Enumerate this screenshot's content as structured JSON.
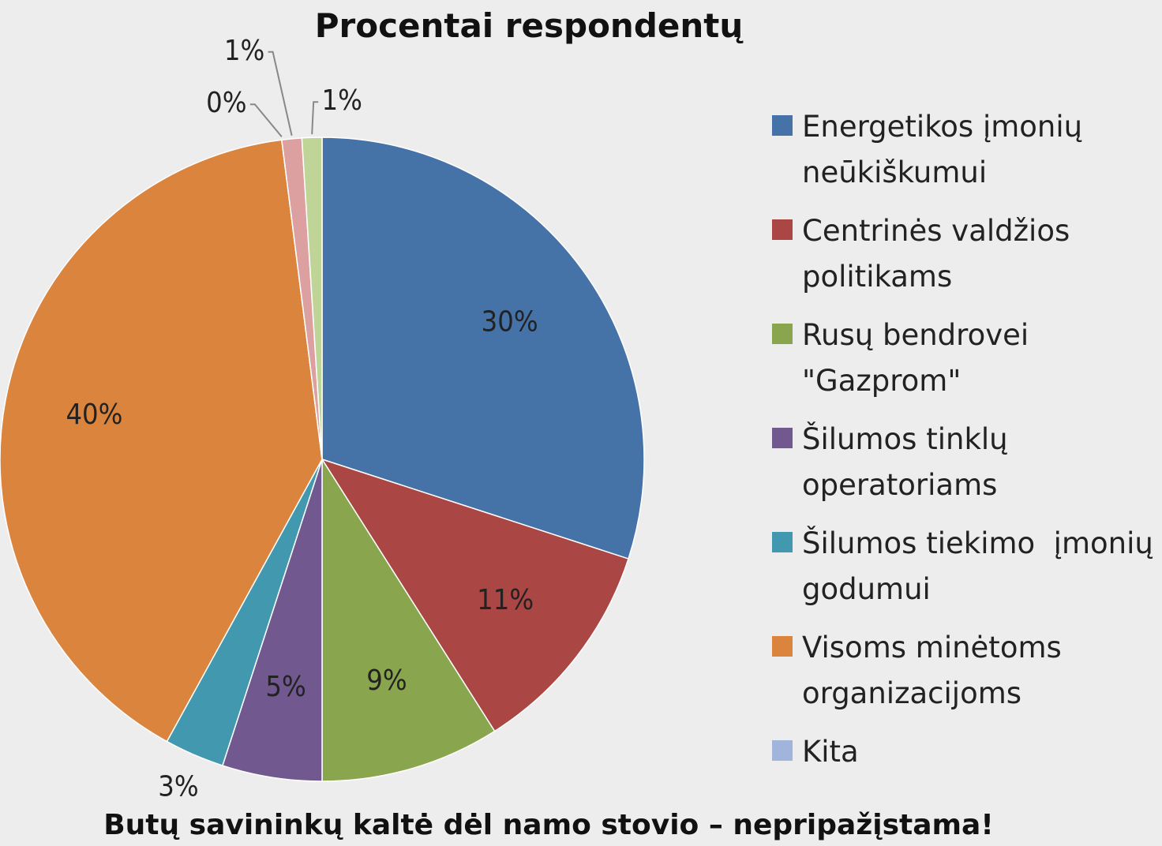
{
  "chart_data": {
    "type": "pie",
    "title": "Procentai respondentų",
    "categories": [
      "Energetikos įmonių neūkiškumui",
      "Centrinės valdžios politikams",
      "Rusų bendrovei \"Gazprom\"",
      "Šilumos tinklų operatoriams",
      "Šilumos tiekimo  įmonių godumui",
      "Visoms minėtoms organizacijoms",
      "Kita",
      null,
      null
    ],
    "values": [
      30,
      11,
      9,
      5,
      3,
      40,
      0,
      1,
      1
    ],
    "value_labels": [
      "30%",
      "11%",
      "9%",
      "5%",
      "3%",
      "40%",
      "0%",
      "1%",
      "1%"
    ],
    "colors": [
      "#4572A7",
      "#AA4643",
      "#89A54E",
      "#71588F",
      "#4198AF",
      "#DB843D",
      "#A0B4DC",
      "#DDA0A0",
      "#BED597"
    ],
    "footnote": "Butų savininkų kaltė dėl namo stovio – nepripažįstama!"
  }
}
